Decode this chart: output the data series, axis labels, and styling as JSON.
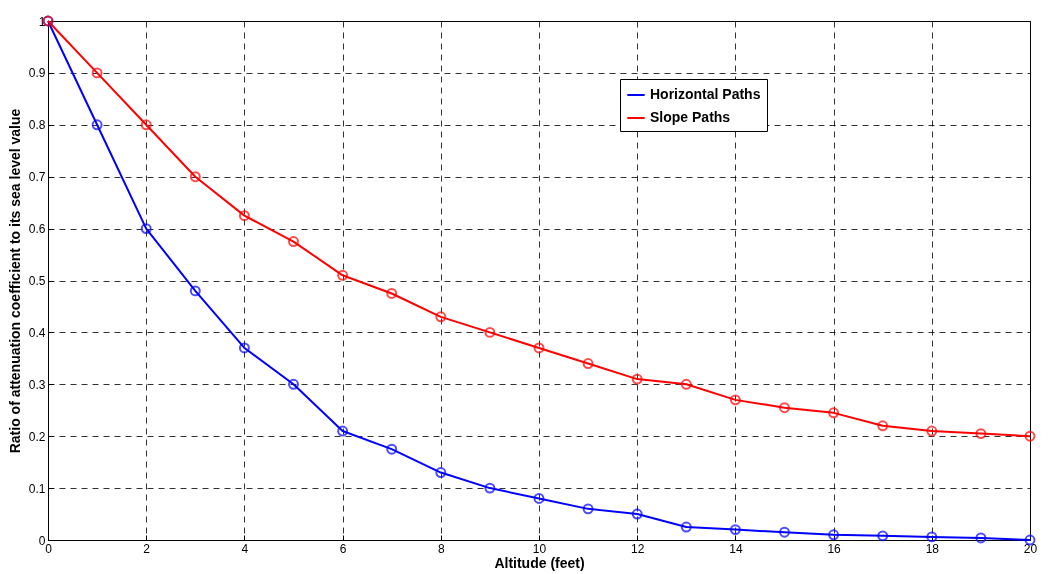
{
  "chart_data": {
    "type": "line",
    "xlabel": "Altitude (feet)",
    "ylabel": "Ratio of attenuation coefficient to its sea level value",
    "x": [
      0,
      1,
      2,
      3,
      4,
      5,
      6,
      7,
      8,
      9,
      10,
      11,
      12,
      13,
      14,
      15,
      16,
      17,
      18,
      19,
      20
    ],
    "series": [
      {
        "name": "Horizontal Paths",
        "color": "#0000ff",
        "values": [
          1,
          0.8,
          0.6,
          0.48,
          0.37,
          0.3,
          0.21,
          0.175,
          0.13,
          0.1,
          0.08,
          0.06,
          0.05,
          0.025,
          0.02,
          0.015,
          0.01,
          0.008,
          0.006,
          0.004,
          0
        ]
      },
      {
        "name": "Slope Paths",
        "color": "#ff0000",
        "values": [
          1,
          0.9,
          0.8,
          0.7,
          0.625,
          0.575,
          0.51,
          0.475,
          0.43,
          0.4,
          0.37,
          0.34,
          0.31,
          0.3,
          0.27,
          0.255,
          0.245,
          0.22,
          0.21,
          0.205,
          0.2
        ]
      }
    ],
    "xlim": [
      0,
      20
    ],
    "xticks": [
      0,
      2,
      4,
      6,
      8,
      10,
      12,
      14,
      16,
      18,
      20
    ],
    "ylim": [
      0,
      1
    ],
    "yticks": [
      0,
      0.1,
      0.2,
      0.3,
      0.4,
      0.5,
      0.6,
      0.7,
      0.8,
      0.9,
      1
    ],
    "grid": true,
    "legend": "top right",
    "marker": "circle",
    "line_style": "solid"
  }
}
